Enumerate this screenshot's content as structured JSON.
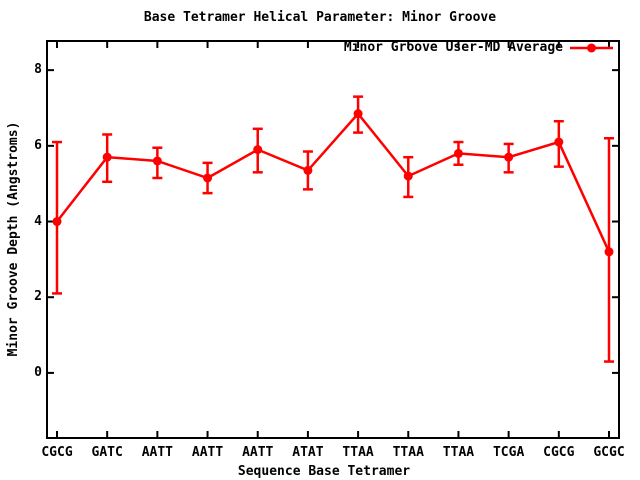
{
  "colors": {
    "series": "#ff0000",
    "axis": "#000000",
    "background": "#ffffff",
    "text": "#000000"
  },
  "chart_data": {
    "type": "line",
    "title": "Base Tetramer Helical Parameter: Minor Groove",
    "xlabel": "Sequence Base Tetramer",
    "ylabel": "Minor Groove Depth (Angstroms)",
    "categories": [
      "CGCG",
      "GATC",
      "AATT",
      "AATT",
      "AATT",
      "ATAT",
      "TTAA",
      "TTAA",
      "TTAA",
      "TCGA",
      "CGCG",
      "GCGC"
    ],
    "series": [
      {
        "name": "Minor Groove User-MD Average",
        "values": [
          4.0,
          5.7,
          5.6,
          5.15,
          5.9,
          5.35,
          6.85,
          5.2,
          5.8,
          5.7,
          6.1,
          3.2
        ],
        "error_high": [
          6.1,
          6.3,
          5.95,
          5.55,
          6.45,
          5.85,
          7.3,
          5.7,
          6.1,
          6.05,
          6.65,
          6.2
        ],
        "error_low": [
          2.1,
          5.05,
          5.15,
          4.75,
          5.3,
          4.85,
          6.35,
          4.65,
          5.5,
          5.3,
          5.45,
          0.3
        ]
      }
    ],
    "y_ticks": [
      0,
      2,
      4,
      6,
      8
    ],
    "ylim": [
      -1.72,
      8.77
    ],
    "grid": false,
    "legend_position": "top-right-inside",
    "marker": "filled-circle",
    "error_bars": true
  }
}
